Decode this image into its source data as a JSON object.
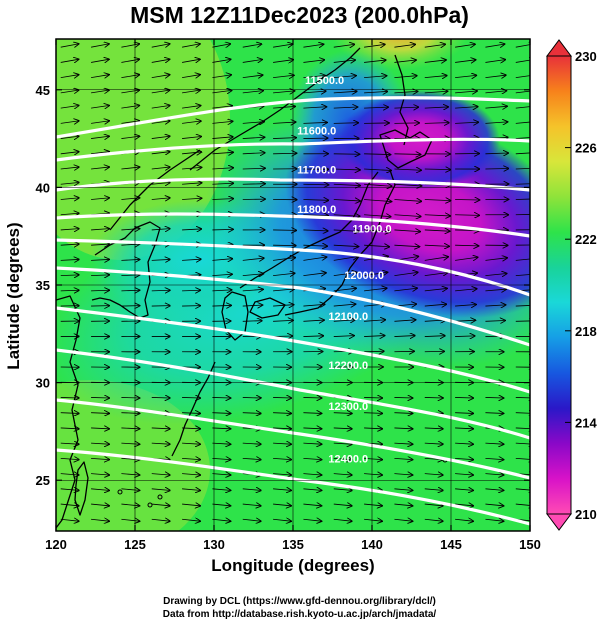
{
  "title": "MSM 12Z11Dec2023 (200.0hPa)",
  "x_axis_label": "Longitude (degrees)",
  "y_axis_label": "Latitude  (degrees)",
  "credits": {
    "line1": "Drawing by DCL (https://www.gfd-dennou.org/library/dcl/)",
    "line2": "Data from http://database.rish.kyoto-u.ac.jp/arch/jmadata/"
  },
  "map": {
    "lon_range": [
      120,
      150
    ],
    "lat_range": [
      22.4,
      47.6
    ],
    "x_ticks": [
      "120",
      "125",
      "130",
      "135",
      "140",
      "145",
      "150"
    ],
    "y_ticks": [
      "25",
      "30",
      "35",
      "40",
      "45"
    ],
    "grid": true,
    "field": "temperature shading",
    "vectors": "wind arrows",
    "contours": [
      {
        "label": "11500.0",
        "lon": 137.0,
        "lat": 45.3
      },
      {
        "label": "11600.0",
        "lon": 136.5,
        "lat": 42.7
      },
      {
        "label": "11700.0",
        "lon": 136.5,
        "lat": 40.7
      },
      {
        "label": "11800.0",
        "lon": 136.5,
        "lat": 38.7
      },
      {
        "label": "11900.0",
        "lon": 140.0,
        "lat": 37.7
      },
      {
        "label": "12000.0",
        "lon": 139.5,
        "lat": 35.3
      },
      {
        "label": "12100.0",
        "lon": 138.5,
        "lat": 33.2
      },
      {
        "label": "12200.0",
        "lon": 138.5,
        "lat": 30.7
      },
      {
        "label": "12300.0",
        "lon": 138.5,
        "lat": 28.6
      },
      {
        "label": "12400.0",
        "lon": 138.5,
        "lat": 25.9
      }
    ]
  },
  "colorbar": {
    "labels": [
      "230",
      "226",
      "222",
      "218",
      "214",
      "210"
    ],
    "colors": [
      "#e8313a",
      "#f7821b",
      "#f5c32a",
      "#d8e63a",
      "#8ee33a",
      "#2ee34a",
      "#19d39a",
      "#1ad8d8",
      "#169ee6",
      "#1758e0",
      "#2a18c8",
      "#8a08c8",
      "#d812c8",
      "#ff4bb4"
    ]
  }
}
